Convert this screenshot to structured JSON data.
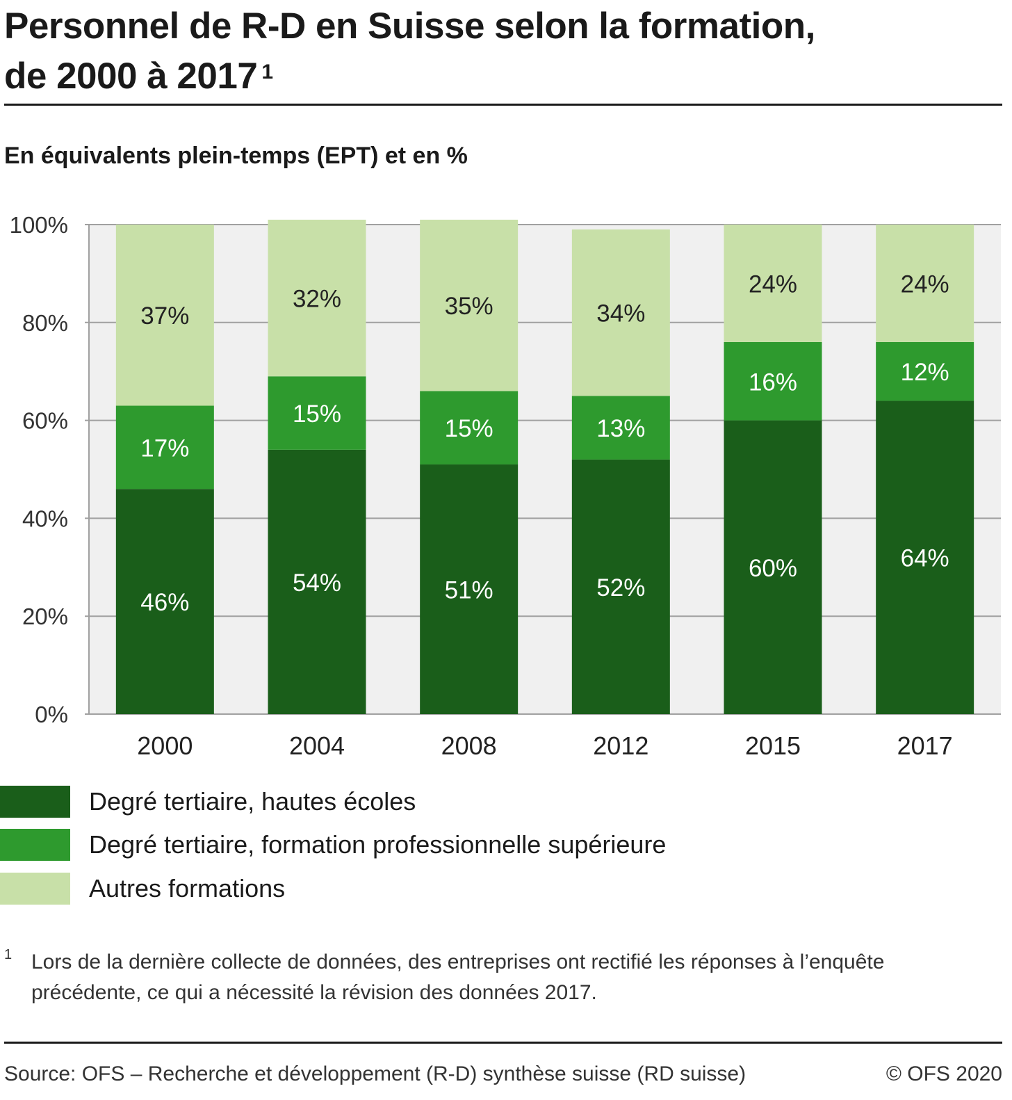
{
  "header": {
    "title_line1": "Personnel de R-D en Suisse selon la formation,",
    "title_line2": "de 2000 à 2017",
    "title_footnote_ref": "1",
    "subtitle": "En équivalents plein-temps (EPT) et en %"
  },
  "colors": {
    "hautes_ecoles": "#1a5e1a",
    "formation_pro": "#2e9a2e",
    "autres": "#c8e0a8",
    "plot_bg": "#f0f0f0",
    "grid": "#a0a0a0"
  },
  "chart_data": {
    "type": "bar",
    "stacked": true,
    "categories": [
      "2000",
      "2004",
      "2008",
      "2012",
      "2015",
      "2017"
    ],
    "series": [
      {
        "name": "Degré tertiaire, hautes écoles",
        "values": [
          46,
          54,
          51,
          52,
          60,
          64
        ],
        "labels": [
          "46%",
          "54%",
          "51%",
          "52%",
          "60%",
          "64%"
        ]
      },
      {
        "name": "Degré tertiaire, formation professionnelle supérieure",
        "values": [
          17,
          15,
          15,
          13,
          16,
          12
        ],
        "labels": [
          "17%",
          "15%",
          "15%",
          "13%",
          "16%",
          "12%"
        ]
      },
      {
        "name": "Autres formations",
        "values": [
          37,
          32,
          35,
          34,
          24,
          24
        ],
        "labels": [
          "37%",
          "32%",
          "35%",
          "34%",
          "24%",
          "24%"
        ]
      }
    ],
    "ylim": [
      0,
      100
    ],
    "yticks": [
      0,
      20,
      40,
      60,
      80,
      100
    ],
    "ytick_labels": [
      "0%",
      "20%",
      "40%",
      "60%",
      "80%",
      "100%"
    ],
    "xlabel": "",
    "ylabel": "",
    "legend_position": "bottom"
  },
  "footnote": {
    "mark": "1",
    "text": "Lors de la dernière collecte de données, des entreprises ont rectifié les réponses à l’enquête précédente, ce qui a nécessité la révision des données 2017."
  },
  "footer": {
    "source": "Source: OFS – Recherche et développement (R-D) synthèse suisse (RD suisse)",
    "copyright": "© OFS 2020"
  }
}
